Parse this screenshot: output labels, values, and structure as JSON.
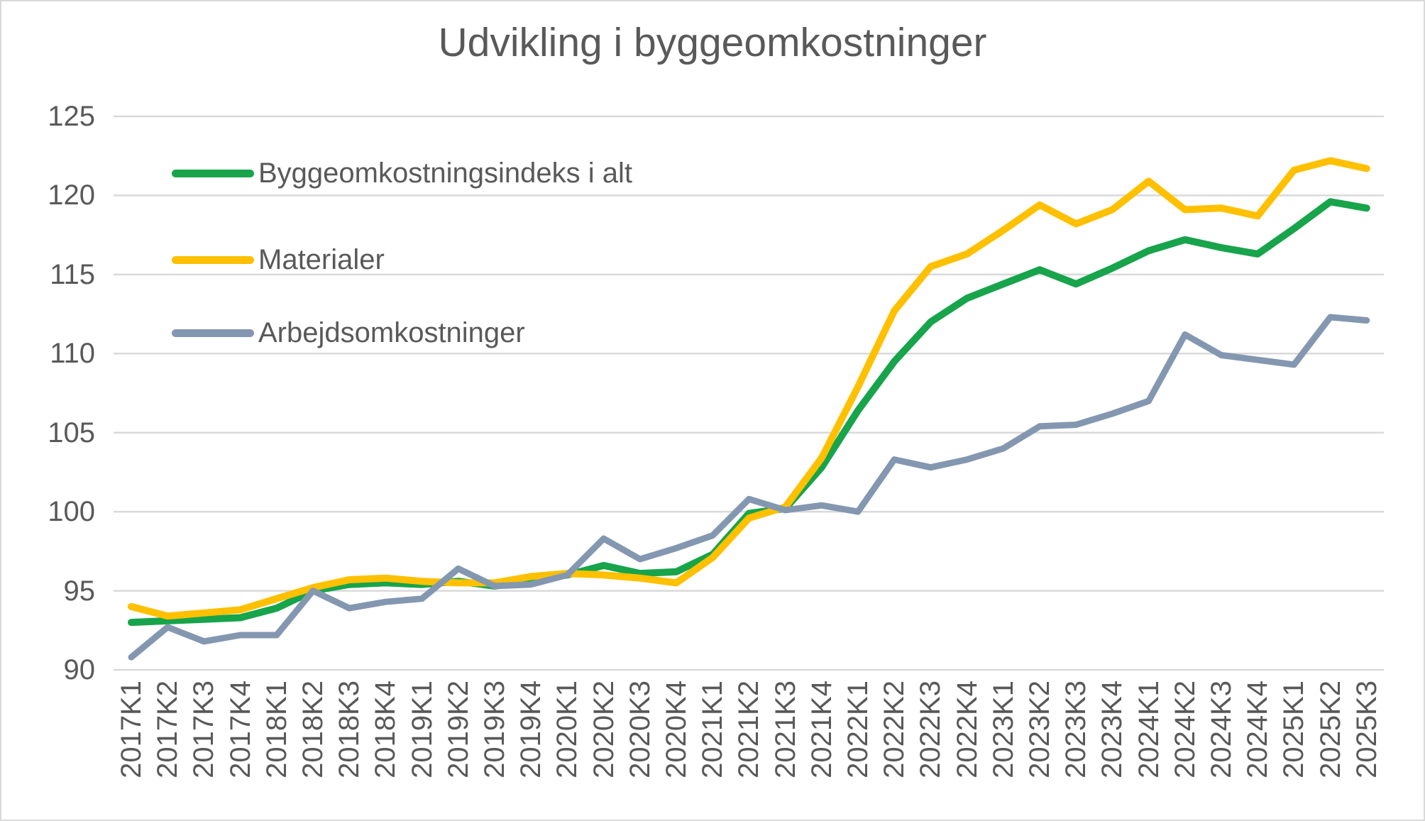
{
  "title": "Udvikling i byggeomkostninger",
  "legend": [
    {
      "label": "Byggeomkostningsindeks i alt",
      "color": "#17A44B"
    },
    {
      "label": "Materialer",
      "color": "#FFC000"
    },
    {
      "label": "Arbejdsomkostninger",
      "color": "#8497B0"
    }
  ],
  "colors": {
    "text": "#595959",
    "gridline": "#D9D9D9",
    "series_total": "#17A44B",
    "series_materials": "#FFC000",
    "series_labour": "#8497B0"
  },
  "chart_data": {
    "type": "line",
    "title": "Udvikling i byggeomkostninger",
    "xlabel": "",
    "ylabel": "",
    "ylim": [
      90,
      125
    ],
    "yticks": [
      125,
      120,
      115,
      110,
      105,
      100,
      95,
      90
    ],
    "grid": true,
    "legend_position": "inside-top-left",
    "categories": [
      "2017K1",
      "2017K2",
      "2017K3",
      "2017K4",
      "2018K1",
      "2018K2",
      "2018K3",
      "2018K4",
      "2019K1",
      "2019K2",
      "2019K3",
      "2019K4",
      "2020K1",
      "2020K2",
      "2020K3",
      "2020K4",
      "2021K1",
      "2021K2",
      "2021K3",
      "2021K4",
      "2022K1",
      "2022K2",
      "2022K3",
      "2022K4",
      "2023K1",
      "2023K2",
      "2023K3",
      "2023K4",
      "2024K1",
      "2024K2",
      "2024K3",
      "2024K4",
      "2025K1",
      "2025K2",
      "2025K3"
    ],
    "series": [
      {
        "name": "Byggeomkostningsindeks i alt",
        "color": "#17A44B",
        "values": [
          93.0,
          93.1,
          93.2,
          93.3,
          93.9,
          95.0,
          95.4,
          95.5,
          95.4,
          95.6,
          95.3,
          95.7,
          96.0,
          96.6,
          96.1,
          96.2,
          97.3,
          99.9,
          100.2,
          102.8,
          106.4,
          109.5,
          112.0,
          113.5,
          114.4,
          115.3,
          114.4,
          115.4,
          116.5,
          117.2,
          116.7,
          116.3,
          117.9,
          119.6,
          119.2
        ]
      },
      {
        "name": "Materialer",
        "color": "#FFC000",
        "values": [
          94.0,
          93.4,
          93.6,
          93.8,
          94.5,
          95.2,
          95.7,
          95.8,
          95.6,
          95.5,
          95.5,
          95.9,
          96.1,
          96.0,
          95.8,
          95.5,
          97.1,
          99.6,
          100.3,
          103.4,
          107.9,
          112.7,
          115.5,
          116.3,
          117.8,
          119.4,
          118.2,
          119.1,
          120.9,
          119.1,
          119.2,
          118.7,
          121.6,
          122.2,
          121.7
        ]
      },
      {
        "name": "Arbejdsomkostninger",
        "color": "#8497B0",
        "values": [
          90.8,
          92.7,
          91.8,
          92.2,
          92.2,
          95.0,
          93.9,
          94.3,
          94.5,
          96.4,
          95.3,
          95.4,
          96.0,
          98.3,
          97.0,
          97.7,
          98.5,
          100.8,
          100.1,
          100.4,
          100.0,
          103.3,
          102.8,
          103.3,
          104.0,
          105.4,
          105.5,
          106.2,
          107.0,
          111.2,
          109.9,
          109.6,
          109.3,
          112.3,
          112.1
        ]
      }
    ]
  }
}
